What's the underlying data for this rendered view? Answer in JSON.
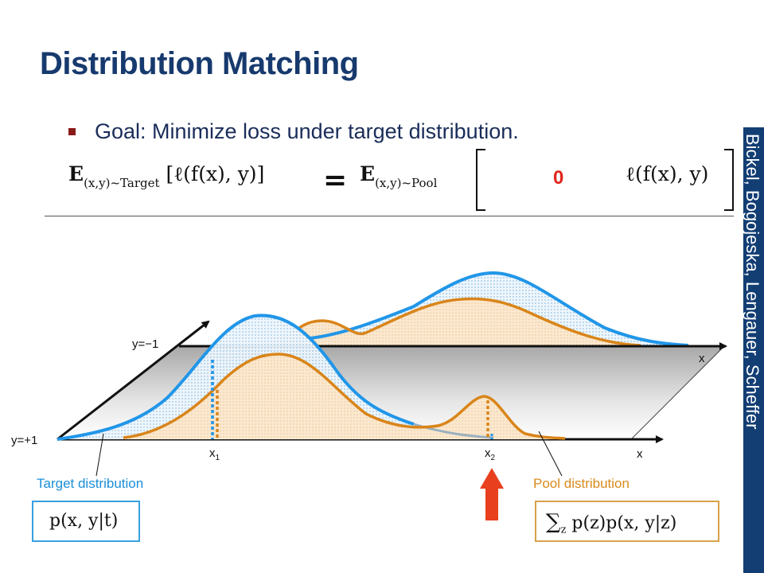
{
  "title": "Distribution Matching",
  "bullet": "Goal: Minimize loss under target distribution.",
  "equation": {
    "lhs_E": "E",
    "lhs_sub": "(x,y)~Target",
    "lhs_body": "[ℓ(f(x), y)]",
    "equals": "=",
    "rhs_E": "E",
    "rhs_sub": "(x,y)~Pool",
    "weight": "0",
    "loss": "ℓ(f(x), y)"
  },
  "authors": "Bickel, Bogojeska, Lengauer, Scheffer",
  "axes": {
    "y_neg": "y=−1",
    "y_pos": "y=+1",
    "x_back": "x",
    "x_front": "x",
    "x1": "x",
    "x1_sub": "1",
    "x2": "x",
    "x2_sub": "2"
  },
  "target_label": "Target distribution",
  "pool_label": "Pool distribution",
  "target_formula": "p(x, y|t)",
  "pool_formula_sum": "∑",
  "pool_formula_sub": "z",
  "pool_formula_body": "p(z)p(x, y|z)",
  "colors": {
    "title": "#173a6e",
    "target": "#2196e8",
    "pool": "#d9851a",
    "weight": "#e0251b",
    "arrow": "#e8401e",
    "sidebar": "#133e74"
  }
}
